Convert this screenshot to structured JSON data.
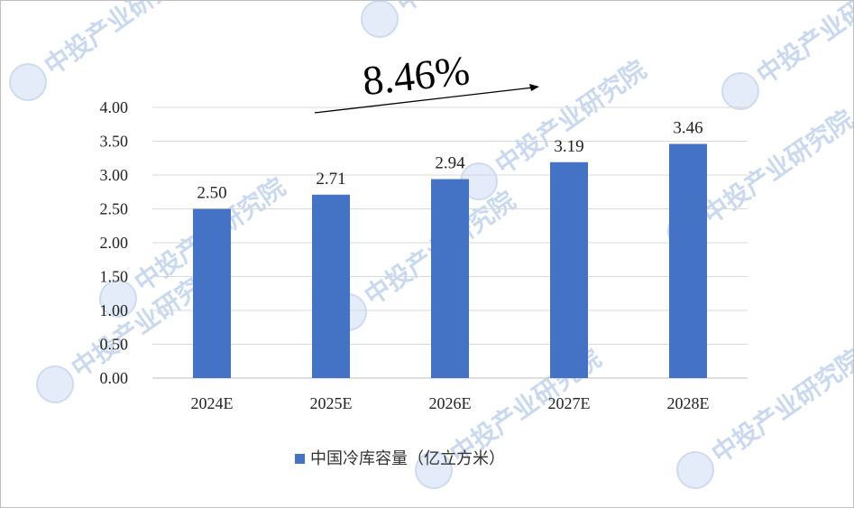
{
  "watermark": {
    "text": "中投产业研究院"
  },
  "annotation": {
    "growth_rate": "8.46%"
  },
  "legend": {
    "label": "中国冷库容量（亿立方米）"
  },
  "chart_data": {
    "type": "bar",
    "categories": [
      "2024E",
      "2025E",
      "2026E",
      "2027E",
      "2028E"
    ],
    "series": [
      {
        "name": "中国冷库容量（亿立方米）",
        "values": [
          2.5,
          2.71,
          2.94,
          3.19,
          3.46
        ],
        "color": "#4472c4"
      }
    ],
    "data_labels": [
      "2.50",
      "2.71",
      "2.94",
      "3.19",
      "3.46"
    ],
    "yticks": [
      "0.00",
      "0.50",
      "1.00",
      "1.50",
      "2.00",
      "2.50",
      "3.00",
      "3.50",
      "4.00"
    ],
    "ylim": [
      0,
      4
    ],
    "grid": true,
    "legend_position": "bottom",
    "title": "",
    "xlabel": "",
    "ylabel": ""
  }
}
